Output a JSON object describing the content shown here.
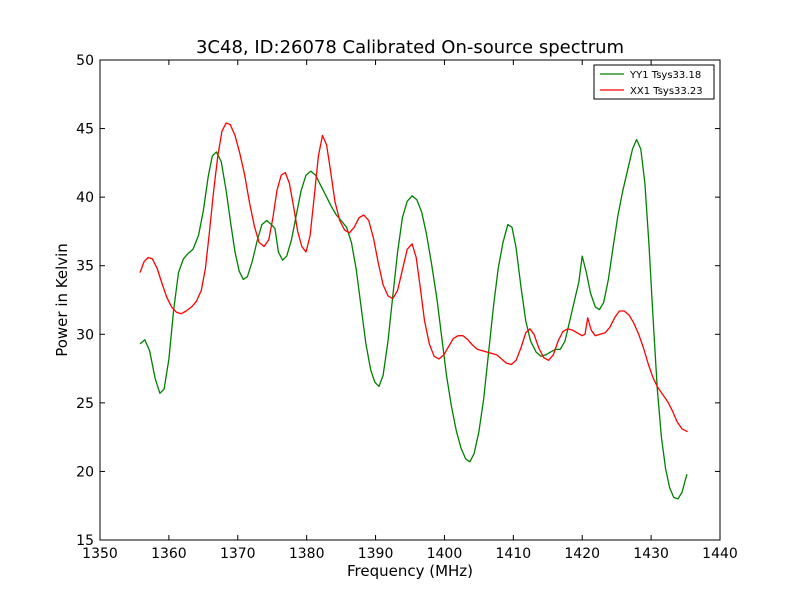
{
  "chart_data": {
    "type": "line",
    "title": "3C48, ID:26078 Calibrated On-source spectrum",
    "xlabel": "Frequency (MHz)",
    "ylabel": "Power in Kelvin",
    "xlim": [
      1350,
      1440
    ],
    "ylim": [
      15,
      50
    ],
    "xticks": [
      1350,
      1360,
      1370,
      1380,
      1390,
      1400,
      1410,
      1420,
      1430,
      1440
    ],
    "yticks": [
      15,
      20,
      25,
      30,
      35,
      40,
      45,
      50
    ],
    "grid": false,
    "legend_position": "top-right",
    "series": [
      {
        "name": "YY1 Tsys33.18",
        "color": "#008000",
        "points": [
          [
            1355.8,
            29.3
          ],
          [
            1356.5,
            29.6
          ],
          [
            1357.2,
            28.8
          ],
          [
            1358.0,
            26.8
          ],
          [
            1358.7,
            25.7
          ],
          [
            1359.3,
            26.0
          ],
          [
            1360.0,
            28.2
          ],
          [
            1360.7,
            31.8
          ],
          [
            1361.4,
            34.5
          ],
          [
            1362.1,
            35.5
          ],
          [
            1362.8,
            35.9
          ],
          [
            1363.5,
            36.2
          ],
          [
            1364.3,
            37.2
          ],
          [
            1365.0,
            39.0
          ],
          [
            1365.7,
            41.5
          ],
          [
            1366.3,
            43.0
          ],
          [
            1366.9,
            43.3
          ],
          [
            1367.6,
            42.6
          ],
          [
            1368.3,
            40.5
          ],
          [
            1369.0,
            38.0
          ],
          [
            1369.6,
            36.0
          ],
          [
            1370.2,
            34.6
          ],
          [
            1370.8,
            34.0
          ],
          [
            1371.4,
            34.2
          ],
          [
            1372.1,
            35.3
          ],
          [
            1372.8,
            36.8
          ],
          [
            1373.5,
            38.0
          ],
          [
            1374.2,
            38.3
          ],
          [
            1374.9,
            38.0
          ],
          [
            1375.4,
            37.7
          ],
          [
            1375.9,
            36.0
          ],
          [
            1376.5,
            35.4
          ],
          [
            1377.1,
            35.7
          ],
          [
            1377.8,
            36.9
          ],
          [
            1378.5,
            38.7
          ],
          [
            1379.2,
            40.5
          ],
          [
            1379.9,
            41.6
          ],
          [
            1380.6,
            41.9
          ],
          [
            1381.3,
            41.6
          ],
          [
            1382.0,
            40.9
          ],
          [
            1382.8,
            40.1
          ],
          [
            1383.5,
            39.4
          ],
          [
            1384.3,
            38.7
          ],
          [
            1385.0,
            38.3
          ],
          [
            1385.8,
            37.8
          ],
          [
            1386.5,
            36.7
          ],
          [
            1387.2,
            34.7
          ],
          [
            1387.9,
            32.0
          ],
          [
            1388.6,
            29.3
          ],
          [
            1389.3,
            27.4
          ],
          [
            1389.9,
            26.5
          ],
          [
            1390.5,
            26.2
          ],
          [
            1391.1,
            27.0
          ],
          [
            1391.8,
            29.5
          ],
          [
            1392.5,
            32.8
          ],
          [
            1393.2,
            36.0
          ],
          [
            1393.9,
            38.5
          ],
          [
            1394.6,
            39.7
          ],
          [
            1395.3,
            40.1
          ],
          [
            1396.0,
            39.8
          ],
          [
            1396.7,
            38.9
          ],
          [
            1397.4,
            37.3
          ],
          [
            1398.1,
            35.2
          ],
          [
            1398.9,
            32.6
          ],
          [
            1399.6,
            29.8
          ],
          [
            1400.3,
            27.0
          ],
          [
            1401.0,
            24.8
          ],
          [
            1401.7,
            23.0
          ],
          [
            1402.4,
            21.7
          ],
          [
            1403.1,
            20.9
          ],
          [
            1403.7,
            20.7
          ],
          [
            1404.3,
            21.3
          ],
          [
            1405.0,
            22.9
          ],
          [
            1405.7,
            25.3
          ],
          [
            1406.4,
            28.6
          ],
          [
            1407.1,
            32.0
          ],
          [
            1407.8,
            34.8
          ],
          [
            1408.5,
            36.7
          ],
          [
            1409.2,
            38.0
          ],
          [
            1409.8,
            37.8
          ],
          [
            1410.4,
            36.3
          ],
          [
            1411.1,
            33.5
          ],
          [
            1411.8,
            31.0
          ],
          [
            1412.5,
            29.5
          ],
          [
            1413.3,
            28.7
          ],
          [
            1414.0,
            28.4
          ],
          [
            1414.7,
            28.5
          ],
          [
            1415.4,
            28.7
          ],
          [
            1416.1,
            28.9
          ],
          [
            1416.8,
            28.9
          ],
          [
            1417.5,
            29.5
          ],
          [
            1418.2,
            31.0
          ],
          [
            1418.9,
            32.5
          ],
          [
            1419.5,
            33.8
          ],
          [
            1420.0,
            35.7
          ],
          [
            1420.6,
            34.5
          ],
          [
            1421.2,
            33.0
          ],
          [
            1421.9,
            32.0
          ],
          [
            1422.5,
            31.8
          ],
          [
            1423.1,
            32.3
          ],
          [
            1423.8,
            34.0
          ],
          [
            1424.5,
            36.4
          ],
          [
            1425.2,
            38.7
          ],
          [
            1425.9,
            40.5
          ],
          [
            1426.6,
            42.0
          ],
          [
            1427.3,
            43.5
          ],
          [
            1427.9,
            44.2
          ],
          [
            1428.5,
            43.5
          ],
          [
            1429.1,
            41.0
          ],
          [
            1429.7,
            36.5
          ],
          [
            1430.3,
            31.0
          ],
          [
            1430.9,
            26.0
          ],
          [
            1431.5,
            22.5
          ],
          [
            1432.1,
            20.2
          ],
          [
            1432.7,
            18.8
          ],
          [
            1433.3,
            18.1
          ],
          [
            1433.9,
            18.0
          ],
          [
            1434.5,
            18.5
          ],
          [
            1435.2,
            19.8
          ]
        ]
      },
      {
        "name": "XX1 Tsys33.23",
        "color": "#ff0000",
        "points": [
          [
            1355.8,
            34.5
          ],
          [
            1356.4,
            35.3
          ],
          [
            1357.0,
            35.6
          ],
          [
            1357.6,
            35.5
          ],
          [
            1358.3,
            34.8
          ],
          [
            1359.0,
            33.7
          ],
          [
            1359.7,
            32.7
          ],
          [
            1360.4,
            32.0
          ],
          [
            1361.1,
            31.6
          ],
          [
            1361.8,
            31.5
          ],
          [
            1362.5,
            31.7
          ],
          [
            1363.3,
            32.0
          ],
          [
            1364.0,
            32.4
          ],
          [
            1364.7,
            33.2
          ],
          [
            1365.3,
            34.8
          ],
          [
            1365.9,
            37.5
          ],
          [
            1366.5,
            40.5
          ],
          [
            1367.1,
            43.0
          ],
          [
            1367.7,
            44.8
          ],
          [
            1368.3,
            45.4
          ],
          [
            1368.9,
            45.3
          ],
          [
            1369.6,
            44.5
          ],
          [
            1370.3,
            43.2
          ],
          [
            1371.0,
            41.6
          ],
          [
            1371.7,
            39.6
          ],
          [
            1372.4,
            37.9
          ],
          [
            1373.1,
            36.7
          ],
          [
            1373.8,
            36.4
          ],
          [
            1374.5,
            36.9
          ],
          [
            1375.1,
            38.5
          ],
          [
            1375.7,
            40.5
          ],
          [
            1376.3,
            41.6
          ],
          [
            1376.9,
            41.8
          ],
          [
            1377.5,
            41.0
          ],
          [
            1378.1,
            39.3
          ],
          [
            1378.7,
            37.5
          ],
          [
            1379.3,
            36.4
          ],
          [
            1379.9,
            36.0
          ],
          [
            1380.5,
            37.2
          ],
          [
            1381.1,
            40.0
          ],
          [
            1381.7,
            43.0
          ],
          [
            1382.3,
            44.5
          ],
          [
            1382.9,
            43.8
          ],
          [
            1383.5,
            41.8
          ],
          [
            1384.1,
            39.7
          ],
          [
            1384.8,
            38.3
          ],
          [
            1385.5,
            37.6
          ],
          [
            1386.2,
            37.4
          ],
          [
            1386.9,
            37.8
          ],
          [
            1387.6,
            38.5
          ],
          [
            1388.3,
            38.7
          ],
          [
            1389.0,
            38.3
          ],
          [
            1389.7,
            37.0
          ],
          [
            1390.4,
            35.2
          ],
          [
            1391.1,
            33.6
          ],
          [
            1391.8,
            32.8
          ],
          [
            1392.5,
            32.6
          ],
          [
            1393.2,
            33.2
          ],
          [
            1393.9,
            34.7
          ],
          [
            1394.6,
            36.2
          ],
          [
            1395.3,
            36.6
          ],
          [
            1395.9,
            35.6
          ],
          [
            1396.5,
            33.4
          ],
          [
            1397.1,
            31.0
          ],
          [
            1397.8,
            29.3
          ],
          [
            1398.5,
            28.4
          ],
          [
            1399.2,
            28.2
          ],
          [
            1399.9,
            28.5
          ],
          [
            1400.6,
            29.1
          ],
          [
            1401.3,
            29.7
          ],
          [
            1402.0,
            29.9
          ],
          [
            1402.7,
            29.9
          ],
          [
            1403.4,
            29.6
          ],
          [
            1404.1,
            29.2
          ],
          [
            1404.8,
            28.9
          ],
          [
            1405.5,
            28.8
          ],
          [
            1406.2,
            28.7
          ],
          [
            1406.9,
            28.6
          ],
          [
            1407.6,
            28.5
          ],
          [
            1408.3,
            28.2
          ],
          [
            1409.0,
            27.9
          ],
          [
            1409.7,
            27.8
          ],
          [
            1410.4,
            28.1
          ],
          [
            1411.1,
            29.0
          ],
          [
            1411.8,
            30.1
          ],
          [
            1412.4,
            30.4
          ],
          [
            1413.0,
            30.0
          ],
          [
            1413.7,
            29.0
          ],
          [
            1414.4,
            28.3
          ],
          [
            1415.1,
            28.1
          ],
          [
            1415.8,
            28.5
          ],
          [
            1416.5,
            29.5
          ],
          [
            1417.2,
            30.2
          ],
          [
            1417.9,
            30.4
          ],
          [
            1418.6,
            30.3
          ],
          [
            1419.3,
            30.1
          ],
          [
            1420.0,
            29.9
          ],
          [
            1420.4,
            30.0
          ],
          [
            1420.8,
            31.2
          ],
          [
            1421.3,
            30.3
          ],
          [
            1421.9,
            29.9
          ],
          [
            1422.6,
            30.0
          ],
          [
            1423.3,
            30.1
          ],
          [
            1424.0,
            30.5
          ],
          [
            1424.7,
            31.2
          ],
          [
            1425.4,
            31.7
          ],
          [
            1426.1,
            31.7
          ],
          [
            1426.8,
            31.4
          ],
          [
            1427.5,
            30.8
          ],
          [
            1428.2,
            30.0
          ],
          [
            1428.9,
            29.0
          ],
          [
            1429.6,
            27.8
          ],
          [
            1430.3,
            26.8
          ],
          [
            1431.0,
            26.1
          ],
          [
            1431.7,
            25.6
          ],
          [
            1432.4,
            25.1
          ],
          [
            1433.1,
            24.4
          ],
          [
            1433.8,
            23.6
          ],
          [
            1434.5,
            23.1
          ],
          [
            1435.3,
            22.9
          ]
        ]
      }
    ]
  }
}
